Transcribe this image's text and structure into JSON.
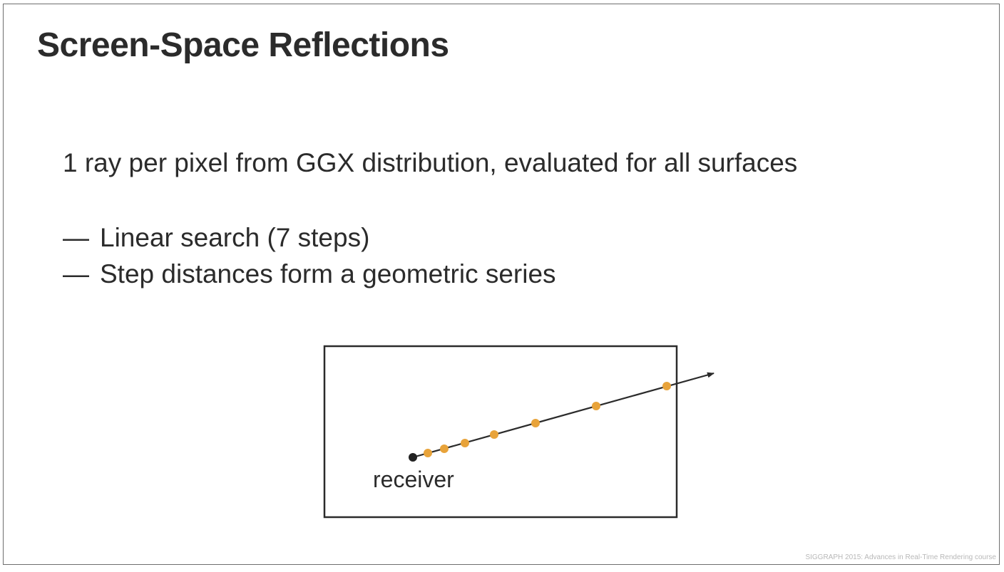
{
  "slide": {
    "title": "Screen-Space Reflections",
    "main_point": "1 ray per pixel from GGX distribution, evaluated for all surfaces",
    "bullets": [
      {
        "dash": "—",
        "text": "Linear search (7 steps)"
      },
      {
        "dash": "—",
        "text": "Step distances form a geometric series"
      }
    ],
    "footer": "SIGGRAPH 2015: Advances in Real-Time Rendering course"
  },
  "diagram": {
    "receiver_label": "receiver",
    "step_count": 7,
    "colors": {
      "ray": "#2b2b2b",
      "receiver_point": "#222222",
      "sample_point": "#e8a33a",
      "frame": "#2b2b2b"
    }
  }
}
